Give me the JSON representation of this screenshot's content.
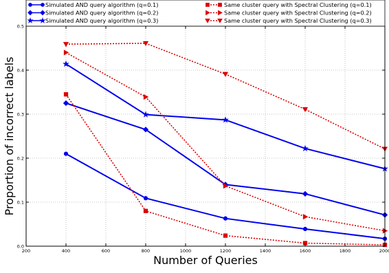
{
  "chart_data": {
    "type": "line",
    "xlabel": "Number of Queries",
    "ylabel": "Proportion of incorrect labels",
    "xlim": [
      200,
      2000
    ],
    "ylim": [
      0.0,
      0.5
    ],
    "xticks": [
      200,
      400,
      600,
      800,
      1000,
      1200,
      1400,
      1600,
      1800,
      2000
    ],
    "yticks": [
      0.0,
      0.1,
      0.2,
      0.3,
      0.4,
      0.5
    ],
    "xtick_labels": [
      "200",
      "400",
      "600",
      "800",
      "1000",
      "1200",
      "1400",
      "1600",
      "1800",
      "2000"
    ],
    "ytick_labels": [
      "0.0",
      "0.1",
      "0.2",
      "0.3",
      "0.4",
      "0.5"
    ],
    "grid": true,
    "legend_position": "top",
    "series": [
      {
        "name": "Simulated AND query algorithm (q=0.1)",
        "color": "#0000ee",
        "dash": "solid",
        "marker": "circle",
        "x": [
          400,
          800,
          1200,
          1600,
          2000
        ],
        "y": [
          0.21,
          0.109,
          0.063,
          0.039,
          0.017
        ]
      },
      {
        "name": "Simulated AND query algorithm (q=0.2)",
        "color": "#0000ee",
        "dash": "solid",
        "marker": "diamond",
        "x": [
          400,
          800,
          1200,
          1600,
          2000
        ],
        "y": [
          0.325,
          0.265,
          0.14,
          0.119,
          0.071
        ]
      },
      {
        "name": "Simulated AND query algorithm (q=0.3)",
        "color": "#0000ee",
        "dash": "solid",
        "marker": "star",
        "x": [
          400,
          800,
          1200,
          1600,
          2000
        ],
        "y": [
          0.414,
          0.299,
          0.287,
          0.222,
          0.176
        ]
      },
      {
        "name": "Same cluster query with Spectral Clustering (q=0.1)",
        "color": "#dd0000",
        "dash": "dotted",
        "marker": "square",
        "x": [
          400,
          800,
          1200,
          1600,
          2000
        ],
        "y": [
          0.345,
          0.08,
          0.024,
          0.007,
          0.003
        ]
      },
      {
        "name": "Same cluster query with Spectral Clustering (q=0.2)",
        "color": "#dd0000",
        "dash": "dotted",
        "marker": "triangle-right",
        "x": [
          400,
          800,
          1200,
          1600,
          2000
        ],
        "y": [
          0.44,
          0.339,
          0.137,
          0.067,
          0.035
        ]
      },
      {
        "name": "Same cluster query with Spectral Clustering (q=0.3)",
        "color": "#dd0000",
        "dash": "dotted",
        "marker": "triangle-down",
        "x": [
          400,
          800,
          1200,
          1600,
          2000
        ],
        "y": [
          0.459,
          0.461,
          0.391,
          0.311,
          0.221
        ]
      }
    ]
  }
}
